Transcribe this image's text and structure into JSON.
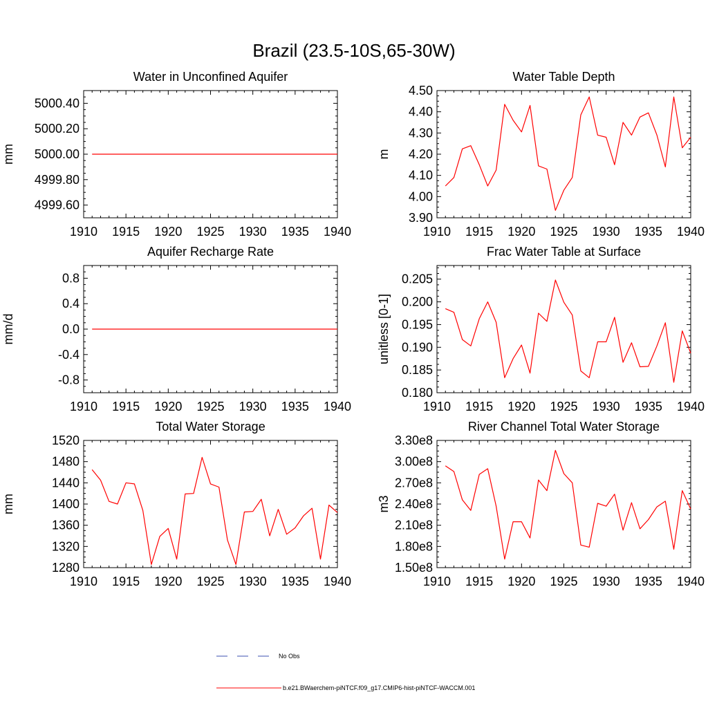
{
  "figure": {
    "title": "Brazil (23.5-10S,65-30W)",
    "line_color": "#ff0000",
    "obs_color": "#3b4fb0"
  },
  "legend": {
    "position": "bottom-center",
    "entries": [
      {
        "label": "No Obs",
        "style": "dashed",
        "color": "#3b4fb0"
      },
      {
        "label": "b.e21.BWaerchem-piNTCF.f09_g17.CMIP6-hist-piNTCF-WACCM.001",
        "style": "solid",
        "color": "#ff0000"
      }
    ]
  },
  "chart_data": [
    {
      "type": "line",
      "title": "Water in Unconfined Aquifer",
      "xlabel": "",
      "ylabel": "mm",
      "xlim": [
        1910,
        1940
      ],
      "ylim": [
        4999.5,
        5000.5
      ],
      "xticks": [
        1910,
        1915,
        1920,
        1925,
        1930,
        1935,
        1940
      ],
      "xtick_labels": [
        "1910",
        "1915",
        "1920",
        "1925",
        "1930",
        "1935",
        "1940"
      ],
      "yticks": [
        4999.6,
        4999.8,
        5000.0,
        5000.2,
        5000.4
      ],
      "ytick_labels": [
        "4999.60",
        "4999.80",
        "5000.00",
        "5000.20",
        "5000.40"
      ],
      "series": [
        {
          "x": [
            1911,
            1940
          ],
          "values": [
            5000.0,
            5000.0
          ]
        }
      ]
    },
    {
      "type": "line",
      "title": "Water Table Depth",
      "xlabel": "",
      "ylabel": "m",
      "xlim": [
        1910,
        1940
      ],
      "ylim": [
        3.9,
        4.5
      ],
      "xticks": [
        1910,
        1915,
        1920,
        1925,
        1930,
        1935,
        1940
      ],
      "xtick_labels": [
        "1910",
        "1915",
        "1920",
        "1925",
        "1930",
        "1935",
        "1940"
      ],
      "yticks": [
        3.9,
        4.0,
        4.1,
        4.2,
        4.3,
        4.4,
        4.5
      ],
      "ytick_labels": [
        "3.90",
        "4.00",
        "4.10",
        "4.20",
        "4.30",
        "4.40",
        "4.50"
      ],
      "series": [
        {
          "x": [
            1911,
            1912,
            1913,
            1914,
            1915,
            1916,
            1917,
            1918,
            1919,
            1920,
            1921,
            1922,
            1923,
            1924,
            1925,
            1926,
            1927,
            1928,
            1929,
            1930,
            1931,
            1932,
            1933,
            1934,
            1935,
            1936,
            1937,
            1938,
            1939,
            1940
          ],
          "values": [
            4.05,
            4.09,
            4.225,
            4.24,
            4.15,
            4.05,
            4.125,
            4.435,
            4.36,
            4.305,
            4.43,
            4.145,
            4.13,
            3.935,
            4.03,
            4.09,
            4.385,
            4.47,
            4.29,
            4.28,
            4.15,
            4.35,
            4.29,
            4.375,
            4.395,
            4.29,
            4.14,
            4.47,
            4.23,
            4.28
          ]
        }
      ]
    },
    {
      "type": "line",
      "title": "Aquifer Recharge Rate",
      "xlabel": "",
      "ylabel": "mm/d",
      "xlim": [
        1910,
        1940
      ],
      "ylim": [
        -1.0,
        1.0
      ],
      "xticks": [
        1910,
        1915,
        1920,
        1925,
        1930,
        1935,
        1940
      ],
      "xtick_labels": [
        "1910",
        "1915",
        "1920",
        "1925",
        "1930",
        "1935",
        "1940"
      ],
      "yticks": [
        -0.8,
        -0.4,
        0.0,
        0.4,
        0.8
      ],
      "ytick_labels": [
        "-0.8",
        "-0.4",
        "0.0",
        "0.4",
        "0.8"
      ],
      "series": [
        {
          "x": [
            1911,
            1940
          ],
          "values": [
            0.0,
            0.0
          ]
        }
      ]
    },
    {
      "type": "line",
      "title": "Frac Water Table at Surface",
      "xlabel": "",
      "ylabel": "unitless [0-1]",
      "xlim": [
        1910,
        1940
      ],
      "ylim": [
        0.18,
        0.208
      ],
      "xticks": [
        1910,
        1915,
        1920,
        1925,
        1930,
        1935,
        1940
      ],
      "xtick_labels": [
        "1910",
        "1915",
        "1920",
        "1925",
        "1930",
        "1935",
        "1940"
      ],
      "yticks": [
        0.18,
        0.185,
        0.19,
        0.195,
        0.2,
        0.205
      ],
      "ytick_labels": [
        "0.180",
        "0.185",
        "0.190",
        "0.195",
        "0.200",
        "0.205"
      ],
      "series": [
        {
          "x": [
            1911,
            1912,
            1913,
            1914,
            1915,
            1916,
            1917,
            1918,
            1919,
            1920,
            1921,
            1922,
            1923,
            1924,
            1925,
            1926,
            1927,
            1928,
            1929,
            1930,
            1931,
            1932,
            1933,
            1934,
            1935,
            1936,
            1937,
            1938,
            1939,
            1940
          ],
          "values": [
            0.1985,
            0.1977,
            0.1917,
            0.1903,
            0.1963,
            0.2,
            0.1955,
            0.1833,
            0.1875,
            0.1905,
            0.1843,
            0.1975,
            0.1957,
            0.2048,
            0.1999,
            0.1971,
            0.1848,
            0.1833,
            0.1912,
            0.1912,
            0.1966,
            0.1867,
            0.191,
            0.1857,
            0.1858,
            0.1903,
            0.1954,
            0.1823,
            0.1936,
            0.1887
          ]
        }
      ]
    },
    {
      "type": "line",
      "title": "Total Water Storage",
      "xlabel": "",
      "ylabel": "mm",
      "xlim": [
        1910,
        1940
      ],
      "ylim": [
        1280,
        1520
      ],
      "xticks": [
        1910,
        1915,
        1920,
        1925,
        1930,
        1935,
        1940
      ],
      "xtick_labels": [
        "1910",
        "1915",
        "1920",
        "1925",
        "1930",
        "1935",
        "1940"
      ],
      "yticks": [
        1280,
        1320,
        1360,
        1400,
        1440,
        1480,
        1520
      ],
      "ytick_labels": [
        "1280",
        "1320",
        "1360",
        "1400",
        "1440",
        "1480",
        "1520"
      ],
      "series": [
        {
          "x": [
            1911,
            1912,
            1913,
            1914,
            1915,
            1916,
            1917,
            1918,
            1919,
            1920,
            1921,
            1922,
            1923,
            1924,
            1925,
            1926,
            1927,
            1928,
            1929,
            1930,
            1931,
            1932,
            1933,
            1934,
            1935,
            1936,
            1937,
            1938,
            1939,
            1940
          ],
          "values": [
            1465,
            1445,
            1405,
            1400,
            1440,
            1438,
            1388,
            1286,
            1339,
            1354,
            1296,
            1419,
            1420,
            1488,
            1438,
            1432,
            1332,
            1286,
            1385,
            1386,
            1409,
            1340,
            1390,
            1343,
            1355,
            1378,
            1392,
            1296,
            1398,
            1384
          ]
        }
      ]
    },
    {
      "type": "line",
      "title": "River Channel Total Water Storage",
      "xlabel": "",
      "ylabel": "m3",
      "xlim": [
        1910,
        1940
      ],
      "ylim": [
        150000000,
        330000000
      ],
      "xticks": [
        1910,
        1915,
        1920,
        1925,
        1930,
        1935,
        1940
      ],
      "xtick_labels": [
        "1910",
        "1915",
        "1920",
        "1925",
        "1930",
        "1935",
        "1940"
      ],
      "yticks": [
        150000000,
        180000000,
        210000000,
        240000000,
        270000000,
        300000000,
        330000000
      ],
      "ytick_labels": [
        "1.50e8",
        "1.80e8",
        "2.10e8",
        "2.40e8",
        "2.70e8",
        "3.00e8",
        "3.30e8"
      ],
      "series": [
        {
          "x": [
            1911,
            1912,
            1913,
            1914,
            1915,
            1916,
            1917,
            1918,
            1919,
            1920,
            1921,
            1922,
            1923,
            1924,
            1925,
            1926,
            1927,
            1928,
            1929,
            1930,
            1931,
            1932,
            1933,
            1934,
            1935,
            1936,
            1937,
            1938,
            1939,
            1940
          ],
          "values": [
            294000000,
            286000000,
            246000000,
            231000000,
            282000000,
            290000000,
            237000000,
            162000000,
            215000000,
            215000000,
            192000000,
            274000000,
            259000000,
            316000000,
            283000000,
            270000000,
            182000000,
            179000000,
            241000000,
            237000000,
            254000000,
            203000000,
            242000000,
            205000000,
            218000000,
            236000000,
            244000000,
            176000000,
            259000000,
            233000000
          ]
        }
      ]
    }
  ]
}
